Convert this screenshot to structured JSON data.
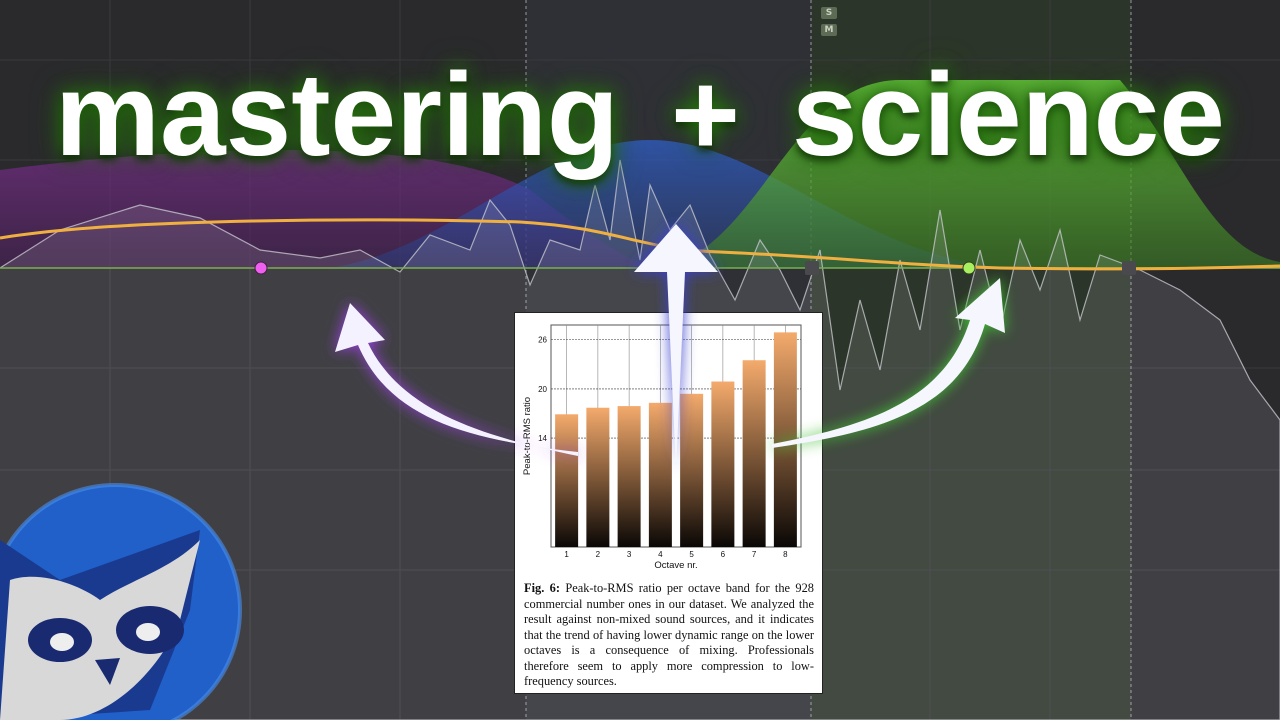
{
  "title": {
    "left": "mastering",
    "plus": "+",
    "right": "science"
  },
  "eq_plugin": {
    "solo_label": "S",
    "mute_label": "M",
    "colors": {
      "band_low": "#8a3aa8",
      "band_mid": "#2f6fd8",
      "band_high": "#5fc43a",
      "curve": "#f0b040",
      "node_low": "#f060f0",
      "node_high": "#a8f060"
    }
  },
  "icons": [
    "arrow-left-curved-icon",
    "arrow-up-icon",
    "arrow-right-curved-icon",
    "owl-logo-icon"
  ],
  "paper": {
    "caption_label": "Fig. 6:",
    "caption_text": "Peak-to-RMS ratio per octave band for the 928 commercial number ones in our dataset. We analyzed the result against non-mixed sound sources, and it indicates that the trend of having lower dynamic range on the lower octaves is a consequence of mixing. Professionals therefore seem to apply more compression to low-frequency sources."
  },
  "chart_data": {
    "type": "bar",
    "categories": [
      "1",
      "2",
      "3",
      "4",
      "5",
      "6",
      "7",
      "8"
    ],
    "values": [
      16.9,
      17.7,
      17.9,
      18.3,
      19.4,
      20.9,
      23.5,
      26.9
    ],
    "xlabel": "Octave nr.",
    "ylabel": "Peak-to-RMS ratio",
    "yticks": [
      14,
      20,
      26
    ],
    "ylim": [
      0.7,
      27.8
    ],
    "grid": true,
    "bar_gradient": [
      "#f4aa6c",
      "#0a0705"
    ]
  }
}
